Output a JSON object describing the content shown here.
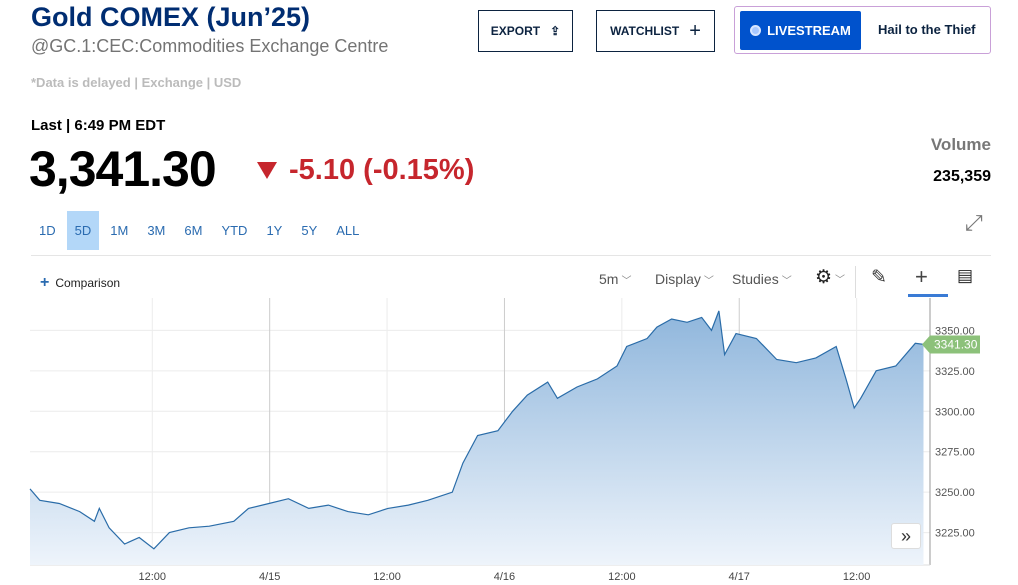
{
  "header": {
    "title": "Gold COMEX (Jun’25)",
    "subtitle": "@GC.1:CEC:Commodities Exchange Centre",
    "delayed_note": "*Data is delayed | Exchange | USD",
    "last_label": "Last | 6:49 PM EDT",
    "price": "3,341.30",
    "change": "-5.10 (-0.15%)",
    "change_color": "#c6262d"
  },
  "actions": {
    "export": "EXPORT",
    "watchlist": "WATCHLIST",
    "livestream": "LIVESTREAM",
    "show_title": "Hail to the Thief"
  },
  "volume": {
    "label": "Volume",
    "value": "235,359"
  },
  "ranges": [
    {
      "label": "1D"
    },
    {
      "label": "5D",
      "active": true
    },
    {
      "label": "1M"
    },
    {
      "label": "3M"
    },
    {
      "label": "6M"
    },
    {
      "label": "YTD"
    },
    {
      "label": "1Y"
    },
    {
      "label": "5Y"
    },
    {
      "label": "ALL"
    }
  ],
  "toolbar": {
    "comparison": "Comparison",
    "interval": "5m",
    "display": "Display",
    "studies": "Studies"
  },
  "chart_data": {
    "type": "area",
    "color": "#2a6ca8",
    "last_value_label": "3341.30",
    "last_value_color": "#8cc17a",
    "ylim": [
      3205,
      3370
    ],
    "y_ticks": [
      "3225.00",
      "3250.00",
      "3275.00",
      "3300.00",
      "3325.00",
      "3350.00"
    ],
    "xlim": [
      "04-13 23:30",
      "04-17 19:30"
    ],
    "x_ticks": [
      {
        "label": "12:00",
        "t": "04-14 12:00"
      },
      {
        "label": "4/15",
        "t": "04-15 00:00"
      },
      {
        "label": "12:00",
        "t": "04-15 12:00"
      },
      {
        "label": "4/16",
        "t": "04-16 00:00"
      },
      {
        "label": "12:00",
        "t": "04-16 12:00"
      },
      {
        "label": "4/17",
        "t": "04-17 00:00"
      },
      {
        "label": "12:00",
        "t": "04-17 12:00"
      }
    ],
    "points": [
      [
        "04-13 23:30",
        3252
      ],
      [
        "04-14 00:30",
        3245
      ],
      [
        "04-14 02:30",
        3243
      ],
      [
        "04-14 04:35",
        3238
      ],
      [
        "04-14 06:05",
        3232
      ],
      [
        "04-14 06:35",
        3240
      ],
      [
        "04-14 07:35",
        3228
      ],
      [
        "04-14 09:10",
        3218
      ],
      [
        "04-14 10:40",
        3222
      ],
      [
        "04-14 12:10",
        3215
      ],
      [
        "04-14 13:45",
        3225
      ],
      [
        "04-14 15:45",
        3228
      ],
      [
        "04-14 17:50",
        3229
      ],
      [
        "04-14 20:20",
        3232
      ],
      [
        "04-14 21:50",
        3240
      ],
      [
        "04-14 23:55",
        3243
      ],
      [
        "04-15 01:55",
        3246
      ],
      [
        "04-15 04:00",
        3240
      ],
      [
        "04-15 06:00",
        3242
      ],
      [
        "04-15 08:00",
        3238
      ],
      [
        "04-15 10:05",
        3236
      ],
      [
        "04-15 12:05",
        3240
      ],
      [
        "04-15 14:10",
        3242
      ],
      [
        "04-15 16:10",
        3245
      ],
      [
        "04-15 18:40",
        3250
      ],
      [
        "04-15 19:45",
        3268
      ],
      [
        "04-15 21:15",
        3285
      ],
      [
        "04-15 23:20",
        3288
      ],
      [
        "04-16 00:50",
        3300
      ],
      [
        "04-16 02:20",
        3310
      ],
      [
        "04-16 04:25",
        3318
      ],
      [
        "04-16 05:25",
        3308
      ],
      [
        "04-16 07:25",
        3315
      ],
      [
        "04-16 09:30",
        3320
      ],
      [
        "04-16 11:30",
        3328
      ],
      [
        "04-16 12:30",
        3340
      ],
      [
        "04-16 14:35",
        3345
      ],
      [
        "04-16 15:35",
        3352
      ],
      [
        "04-16 17:05",
        3357
      ],
      [
        "04-16 18:40",
        3355
      ],
      [
        "04-16 20:10",
        3358
      ],
      [
        "04-16 21:10",
        3350
      ],
      [
        "04-16 21:55",
        3362
      ],
      [
        "04-16 22:30",
        3335
      ],
      [
        "04-16 23:40",
        3348
      ],
      [
        "04-17 01:45",
        3345
      ],
      [
        "04-17 03:50",
        3332
      ],
      [
        "04-17 05:50",
        3330
      ],
      [
        "04-17 07:50",
        3333
      ],
      [
        "04-17 09:55",
        3340
      ],
      [
        "04-17 10:55",
        3320
      ],
      [
        "04-17 11:45",
        3302
      ],
      [
        "04-17 12:25",
        3308
      ],
      [
        "04-17 14:00",
        3325
      ],
      [
        "04-17 16:00",
        3328
      ],
      [
        "04-17 18:00",
        3342
      ],
      [
        "04-17 18:50",
        3341.3
      ]
    ]
  }
}
